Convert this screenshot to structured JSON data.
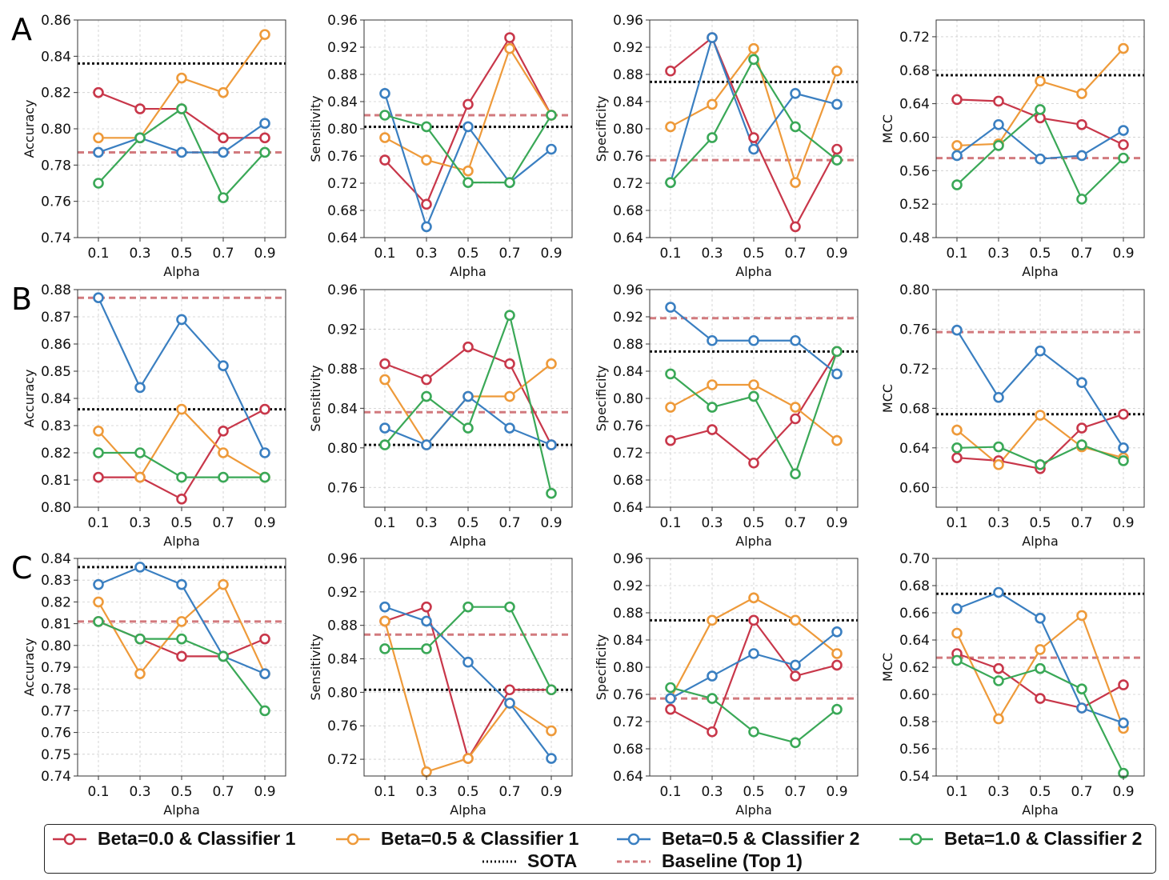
{
  "panel_letters": [
    "A",
    "B",
    "C"
  ],
  "colors": {
    "beta00_c1": "#c8374a",
    "beta05_c1": "#ee9a3a",
    "beta05_c2": "#3a7fc1",
    "beta10_c2": "#3aa857",
    "sota": "#111111",
    "baseline": "#d27a7e",
    "grid": "#cccccc"
  },
  "legend": {
    "items": [
      {
        "key": "beta00_c1",
        "label": "Beta=0.0 & Classifier 1",
        "style": "line-marker"
      },
      {
        "key": "beta05_c1",
        "label": "Beta=0.5 & Classifier 1",
        "style": "line-marker"
      },
      {
        "key": "beta05_c2",
        "label": "Beta=0.5 & Classifier 2",
        "style": "line-marker"
      },
      {
        "key": "beta10_c2",
        "label": "Beta=1.0 & Classifier 2",
        "style": "line-marker"
      },
      {
        "key": "sota",
        "label": "SOTA",
        "style": "dotted"
      },
      {
        "key": "baseline",
        "label": "Baseline (Top 1)",
        "style": "dashed"
      }
    ]
  },
  "chart_data": [
    {
      "type": "line",
      "row": "A",
      "title": "",
      "xlabel": "Alpha",
      "ylabel": "Accuracy",
      "x": [
        0.1,
        0.3,
        0.5,
        0.7,
        0.9
      ],
      "ylim": [
        0.74,
        0.86
      ],
      "yticks": [
        0.74,
        0.76,
        0.78,
        0.8,
        0.82,
        0.84,
        0.86
      ],
      "grid": true,
      "sota": 0.836,
      "baseline": 0.787,
      "series": [
        {
          "name": "Beta=0.0 & Classifier 1",
          "key": "beta00_c1",
          "values": [
            0.82,
            0.811,
            0.811,
            0.795,
            0.795
          ]
        },
        {
          "name": "Beta=0.5 & Classifier 1",
          "key": "beta05_c1",
          "values": [
            0.795,
            0.795,
            0.828,
            0.82,
            0.852
          ]
        },
        {
          "name": "Beta=0.5 & Classifier 2",
          "key": "beta05_c2",
          "values": [
            0.787,
            0.795,
            0.787,
            0.787,
            0.803
          ]
        },
        {
          "name": "Beta=1.0 & Classifier 2",
          "key": "beta10_c2",
          "values": [
            0.77,
            0.795,
            0.811,
            0.762,
            0.787
          ]
        }
      ]
    },
    {
      "type": "line",
      "row": "A",
      "title": "",
      "xlabel": "Alpha",
      "ylabel": "Sensitivity",
      "x": [
        0.1,
        0.3,
        0.5,
        0.7,
        0.9
      ],
      "ylim": [
        0.64,
        0.96
      ],
      "yticks": [
        0.64,
        0.68,
        0.72,
        0.76,
        0.8,
        0.84,
        0.88,
        0.92,
        0.96
      ],
      "grid": true,
      "sota": 0.803,
      "baseline": 0.82,
      "series": [
        {
          "name": "Beta=0.0 & Classifier 1",
          "key": "beta00_c1",
          "values": [
            0.754,
            0.689,
            0.836,
            0.934,
            0.82
          ]
        },
        {
          "name": "Beta=0.5 & Classifier 1",
          "key": "beta05_c1",
          "values": [
            0.787,
            0.754,
            0.738,
            0.918,
            0.82
          ]
        },
        {
          "name": "Beta=0.5 & Classifier 2",
          "key": "beta05_c2",
          "values": [
            0.852,
            0.656,
            0.803,
            0.721,
            0.77
          ]
        },
        {
          "name": "Beta=1.0 & Classifier 2",
          "key": "beta10_c2",
          "values": [
            0.82,
            0.803,
            0.721,
            0.721,
            0.82
          ]
        }
      ]
    },
    {
      "type": "line",
      "row": "A",
      "title": "",
      "xlabel": "Alpha",
      "ylabel": "Specificity",
      "x": [
        0.1,
        0.3,
        0.5,
        0.7,
        0.9
      ],
      "ylim": [
        0.64,
        0.96
      ],
      "yticks": [
        0.64,
        0.68,
        0.72,
        0.76,
        0.8,
        0.84,
        0.88,
        0.92,
        0.96
      ],
      "grid": true,
      "sota": 0.869,
      "baseline": 0.754,
      "series": [
        {
          "name": "Beta=0.0 & Classifier 1",
          "key": "beta00_c1",
          "values": [
            0.885,
            0.934,
            0.787,
            0.656,
            0.77
          ]
        },
        {
          "name": "Beta=0.5 & Classifier 1",
          "key": "beta05_c1",
          "values": [
            0.803,
            0.836,
            0.918,
            0.721,
            0.885
          ]
        },
        {
          "name": "Beta=0.5 & Classifier 2",
          "key": "beta05_c2",
          "values": [
            0.721,
            0.934,
            0.77,
            0.852,
            0.836
          ]
        },
        {
          "name": "Beta=1.0 & Classifier 2",
          "key": "beta10_c2",
          "values": [
            0.721,
            0.787,
            0.902,
            0.803,
            0.754
          ]
        }
      ]
    },
    {
      "type": "line",
      "row": "A",
      "title": "",
      "xlabel": "Alpha",
      "ylabel": "MCC",
      "x": [
        0.1,
        0.3,
        0.5,
        0.7,
        0.9
      ],
      "ylim": [
        0.48,
        0.74
      ],
      "yticks": [
        0.48,
        0.52,
        0.56,
        0.6,
        0.64,
        0.68,
        0.72
      ],
      "grid": true,
      "sota": 0.674,
      "baseline": 0.575,
      "series": [
        {
          "name": "Beta=0.0 & Classifier 1",
          "key": "beta00_c1",
          "values": [
            0.645,
            0.643,
            0.623,
            0.615,
            0.591
          ]
        },
        {
          "name": "Beta=0.5 & Classifier 1",
          "key": "beta05_c1",
          "values": [
            0.59,
            0.592,
            0.667,
            0.652,
            0.706
          ]
        },
        {
          "name": "Beta=0.5 & Classifier 2",
          "key": "beta05_c2",
          "values": [
            0.578,
            0.615,
            0.574,
            0.578,
            0.608
          ]
        },
        {
          "name": "Beta=1.0 & Classifier 2",
          "key": "beta10_c2",
          "values": [
            0.543,
            0.59,
            0.633,
            0.526,
            0.575
          ]
        }
      ]
    },
    {
      "type": "line",
      "row": "B",
      "title": "",
      "xlabel": "Alpha",
      "ylabel": "Accuracy",
      "x": [
        0.1,
        0.3,
        0.5,
        0.7,
        0.9
      ],
      "ylim": [
        0.8,
        0.88
      ],
      "yticks": [
        0.8,
        0.81,
        0.82,
        0.83,
        0.84,
        0.85,
        0.86,
        0.87,
        0.88
      ],
      "grid": true,
      "sota": 0.836,
      "baseline": 0.877,
      "series": [
        {
          "name": "Beta=0.0 & Classifier 1",
          "key": "beta00_c1",
          "values": [
            0.811,
            0.811,
            0.803,
            0.828,
            0.836
          ]
        },
        {
          "name": "Beta=0.5 & Classifier 1",
          "key": "beta05_c1",
          "values": [
            0.828,
            0.811,
            0.836,
            0.82,
            0.811
          ]
        },
        {
          "name": "Beta=0.5 & Classifier 2",
          "key": "beta05_c2",
          "values": [
            0.877,
            0.844,
            0.869,
            0.852,
            0.82
          ]
        },
        {
          "name": "Beta=1.0 & Classifier 2",
          "key": "beta10_c2",
          "values": [
            0.82,
            0.82,
            0.811,
            0.811,
            0.811
          ]
        }
      ]
    },
    {
      "type": "line",
      "row": "B",
      "title": "",
      "xlabel": "Alpha",
      "ylabel": "Sensitivity",
      "x": [
        0.1,
        0.3,
        0.5,
        0.7,
        0.9
      ],
      "ylim": [
        0.74,
        0.96
      ],
      "yticks": [
        0.76,
        0.8,
        0.84,
        0.88,
        0.92,
        0.96
      ],
      "grid": true,
      "sota": 0.803,
      "baseline": 0.836,
      "series": [
        {
          "name": "Beta=0.0 & Classifier 1",
          "key": "beta00_c1",
          "values": [
            0.885,
            0.869,
            0.902,
            0.885,
            0.803
          ]
        },
        {
          "name": "Beta=0.5 & Classifier 1",
          "key": "beta05_c1",
          "values": [
            0.869,
            0.803,
            0.852,
            0.852,
            0.885
          ]
        },
        {
          "name": "Beta=0.5 & Classifier 2",
          "key": "beta05_c2",
          "values": [
            0.82,
            0.803,
            0.852,
            0.82,
            0.803
          ]
        },
        {
          "name": "Beta=1.0 & Classifier 2",
          "key": "beta10_c2",
          "values": [
            0.803,
            0.852,
            0.82,
            0.934,
            0.754
          ]
        }
      ]
    },
    {
      "type": "line",
      "row": "B",
      "title": "",
      "xlabel": "Alpha",
      "ylabel": "Specificity",
      "x": [
        0.1,
        0.3,
        0.5,
        0.7,
        0.9
      ],
      "ylim": [
        0.64,
        0.96
      ],
      "yticks": [
        0.64,
        0.68,
        0.72,
        0.76,
        0.8,
        0.84,
        0.88,
        0.92,
        0.96
      ],
      "grid": true,
      "sota": 0.869,
      "baseline": 0.918,
      "series": [
        {
          "name": "Beta=0.0 & Classifier 1",
          "key": "beta00_c1",
          "values": [
            0.738,
            0.754,
            0.705,
            0.77,
            0.869
          ]
        },
        {
          "name": "Beta=0.5 & Classifier 1",
          "key": "beta05_c1",
          "values": [
            0.787,
            0.82,
            0.82,
            0.787,
            0.738
          ]
        },
        {
          "name": "Beta=0.5 & Classifier 2",
          "key": "beta05_c2",
          "values": [
            0.934,
            0.885,
            0.885,
            0.885,
            0.836
          ]
        },
        {
          "name": "Beta=1.0 & Classifier 2",
          "key": "beta10_c2",
          "values": [
            0.836,
            0.787,
            0.803,
            0.689,
            0.869
          ]
        }
      ]
    },
    {
      "type": "line",
      "row": "B",
      "title": "",
      "xlabel": "Alpha",
      "ylabel": "MCC",
      "x": [
        0.1,
        0.3,
        0.5,
        0.7,
        0.9
      ],
      "ylim": [
        0.58,
        0.8
      ],
      "yticks": [
        0.6,
        0.64,
        0.68,
        0.72,
        0.76,
        0.8
      ],
      "grid": true,
      "sota": 0.674,
      "baseline": 0.757,
      "series": [
        {
          "name": "Beta=0.0 & Classifier 1",
          "key": "beta00_c1",
          "values": [
            0.63,
            0.627,
            0.619,
            0.66,
            0.674
          ]
        },
        {
          "name": "Beta=0.5 & Classifier 1",
          "key": "beta05_c1",
          "values": [
            0.658,
            0.623,
            0.673,
            0.641,
            0.63
          ]
        },
        {
          "name": "Beta=0.5 & Classifier 2",
          "key": "beta05_c2",
          "values": [
            0.759,
            0.691,
            0.738,
            0.706,
            0.64
          ]
        },
        {
          "name": "Beta=1.0 & Classifier 2",
          "key": "beta10_c2",
          "values": [
            0.64,
            0.641,
            0.623,
            0.643,
            0.627
          ]
        }
      ]
    },
    {
      "type": "line",
      "row": "C",
      "title": "",
      "xlabel": "Alpha",
      "ylabel": "Accuracy",
      "x": [
        0.1,
        0.3,
        0.5,
        0.7,
        0.9
      ],
      "ylim": [
        0.74,
        0.84
      ],
      "yticks": [
        0.74,
        0.75,
        0.76,
        0.77,
        0.78,
        0.79,
        0.8,
        0.81,
        0.82,
        0.83,
        0.84
      ],
      "grid": true,
      "sota": 0.836,
      "baseline": 0.811,
      "series": [
        {
          "name": "Beta=0.0 & Classifier 1",
          "key": "beta00_c1",
          "values": [
            0.811,
            0.803,
            0.795,
            0.795,
            0.803
          ]
        },
        {
          "name": "Beta=0.5 & Classifier 1",
          "key": "beta05_c1",
          "values": [
            0.82,
            0.787,
            0.811,
            0.828,
            0.787
          ]
        },
        {
          "name": "Beta=0.5 & Classifier 2",
          "key": "beta05_c2",
          "values": [
            0.828,
            0.836,
            0.828,
            0.795,
            0.787
          ]
        },
        {
          "name": "Beta=1.0 & Classifier 2",
          "key": "beta10_c2",
          "values": [
            0.811,
            0.803,
            0.803,
            0.795,
            0.77
          ]
        }
      ]
    },
    {
      "type": "line",
      "row": "C",
      "title": "",
      "xlabel": "Alpha",
      "ylabel": "Sensitivity",
      "x": [
        0.1,
        0.3,
        0.5,
        0.7,
        0.9
      ],
      "ylim": [
        0.7,
        0.96
      ],
      "yticks": [
        0.72,
        0.76,
        0.8,
        0.84,
        0.88,
        0.92,
        0.96
      ],
      "grid": true,
      "sota": 0.803,
      "baseline": 0.869,
      "series": [
        {
          "name": "Beta=0.0 & Classifier 1",
          "key": "beta00_c1",
          "values": [
            0.885,
            0.902,
            0.721,
            0.803,
            0.803
          ]
        },
        {
          "name": "Beta=0.5 & Classifier 1",
          "key": "beta05_c1",
          "values": [
            0.885,
            0.705,
            0.721,
            0.787,
            0.754
          ]
        },
        {
          "name": "Beta=0.5 & Classifier 2",
          "key": "beta05_c2",
          "values": [
            0.902,
            0.885,
            0.836,
            0.787,
            0.721
          ]
        },
        {
          "name": "Beta=1.0 & Classifier 2",
          "key": "beta10_c2",
          "values": [
            0.852,
            0.852,
            0.902,
            0.902,
            0.803
          ]
        }
      ]
    },
    {
      "type": "line",
      "row": "C",
      "title": "",
      "xlabel": "Alpha",
      "ylabel": "Specificity",
      "x": [
        0.1,
        0.3,
        0.5,
        0.7,
        0.9
      ],
      "ylim": [
        0.64,
        0.96
      ],
      "yticks": [
        0.64,
        0.68,
        0.72,
        0.76,
        0.8,
        0.84,
        0.88,
        0.92,
        0.96
      ],
      "grid": true,
      "sota": 0.869,
      "baseline": 0.754,
      "series": [
        {
          "name": "Beta=0.0 & Classifier 1",
          "key": "beta00_c1",
          "values": [
            0.738,
            0.705,
            0.869,
            0.787,
            0.803
          ]
        },
        {
          "name": "Beta=0.5 & Classifier 1",
          "key": "beta05_c1",
          "values": [
            0.754,
            0.869,
            0.902,
            0.869,
            0.82
          ]
        },
        {
          "name": "Beta=0.5 & Classifier 2",
          "key": "beta05_c2",
          "values": [
            0.754,
            0.787,
            0.82,
            0.803,
            0.852
          ]
        },
        {
          "name": "Beta=1.0 & Classifier 2",
          "key": "beta10_c2",
          "values": [
            0.77,
            0.754,
            0.705,
            0.689,
            0.738
          ]
        }
      ]
    },
    {
      "type": "line",
      "row": "C",
      "title": "",
      "xlabel": "Alpha",
      "ylabel": "MCC",
      "x": [
        0.1,
        0.3,
        0.5,
        0.7,
        0.9
      ],
      "ylim": [
        0.54,
        0.7
      ],
      "yticks": [
        0.54,
        0.56,
        0.58,
        0.6,
        0.62,
        0.64,
        0.66,
        0.68,
        0.7
      ],
      "grid": true,
      "sota": 0.674,
      "baseline": 0.627,
      "series": [
        {
          "name": "Beta=0.0 & Classifier 1",
          "key": "beta00_c1",
          "values": [
            0.63,
            0.619,
            0.597,
            0.59,
            0.607
          ]
        },
        {
          "name": "Beta=0.5 & Classifier 1",
          "key": "beta05_c1",
          "values": [
            0.645,
            0.582,
            0.633,
            0.658,
            0.575
          ]
        },
        {
          "name": "Beta=0.5 & Classifier 2",
          "key": "beta05_c2",
          "values": [
            0.663,
            0.675,
            0.656,
            0.59,
            0.579
          ]
        },
        {
          "name": "Beta=1.0 & Classifier 2",
          "key": "beta10_c2",
          "values": [
            0.625,
            0.61,
            0.619,
            0.604,
            0.542
          ]
        }
      ]
    }
  ]
}
